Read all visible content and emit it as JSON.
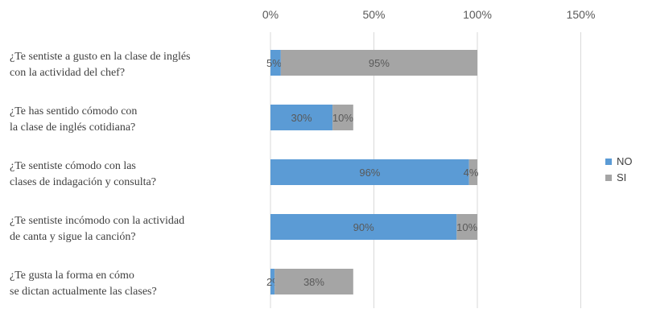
{
  "chart_data": {
    "type": "bar",
    "orientation": "horizontal",
    "stacked": true,
    "categories": [
      [
        "¿Te sentiste a gusto en la clase de inglés",
        "con la actividad del chef?"
      ],
      [
        "¿Te has sentido cómodo con",
        "la clase de inglés cotidiana?"
      ],
      [
        "¿Te sentiste cómodo con las",
        "clases de indagación y consulta?"
      ],
      [
        "¿Te sentiste incómodo con la actividad",
        "de canta y sigue la canción?"
      ],
      [
        "¿Te gusta la forma en cómo",
        "se dictan actualmente las clases?"
      ]
    ],
    "series": [
      {
        "name": "NO",
        "values": [
          5,
          30,
          96,
          90,
          2
        ],
        "labels": [
          "5%",
          "30%",
          "96%",
          "90%",
          "2%"
        ],
        "color": "#5b9bd5"
      },
      {
        "name": "SI",
        "values": [
          95,
          10,
          4,
          10,
          38
        ],
        "labels": [
          "95%",
          "10%",
          "4%",
          "10%",
          "38%"
        ],
        "color": "#a5a5a5"
      }
    ],
    "x_ticks": [
      "0%",
      "50%",
      "100%",
      "150%"
    ],
    "xlim": [
      0,
      150
    ],
    "grid": true,
    "legend_position": "right",
    "title": "",
    "xlabel": "",
    "ylabel": ""
  }
}
